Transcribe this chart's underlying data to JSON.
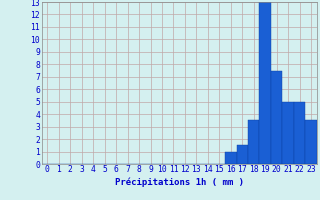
{
  "x_labels": [
    0,
    1,
    2,
    3,
    4,
    5,
    6,
    7,
    8,
    9,
    10,
    11,
    12,
    13,
    14,
    15,
    16,
    17,
    18,
    19,
    20,
    21,
    22,
    23
  ],
  "values": [
    0,
    0,
    0,
    0,
    0,
    0,
    0,
    0,
    0,
    0,
    0,
    0,
    0,
    0,
    0,
    0,
    1,
    1.5,
    3.5,
    13,
    7.5,
    5,
    5,
    3.5
  ],
  "bar_color": "#1a5fd4",
  "bar_edge_color": "#0a3fa0",
  "background_color": "#d4f0f0",
  "grid_color": "#c0a8a8",
  "text_color": "#0000cc",
  "xlabel": "Précipitations 1h ( mm )",
  "ylabel_ticks": [
    0,
    1,
    2,
    3,
    4,
    5,
    6,
    7,
    8,
    9,
    10,
    11,
    12,
    13
  ],
  "ylim": [
    0,
    13
  ],
  "xlim": [
    -0.5,
    23.5
  ],
  "xlabel_fontsize": 6.5,
  "tick_fontsize": 5.8
}
